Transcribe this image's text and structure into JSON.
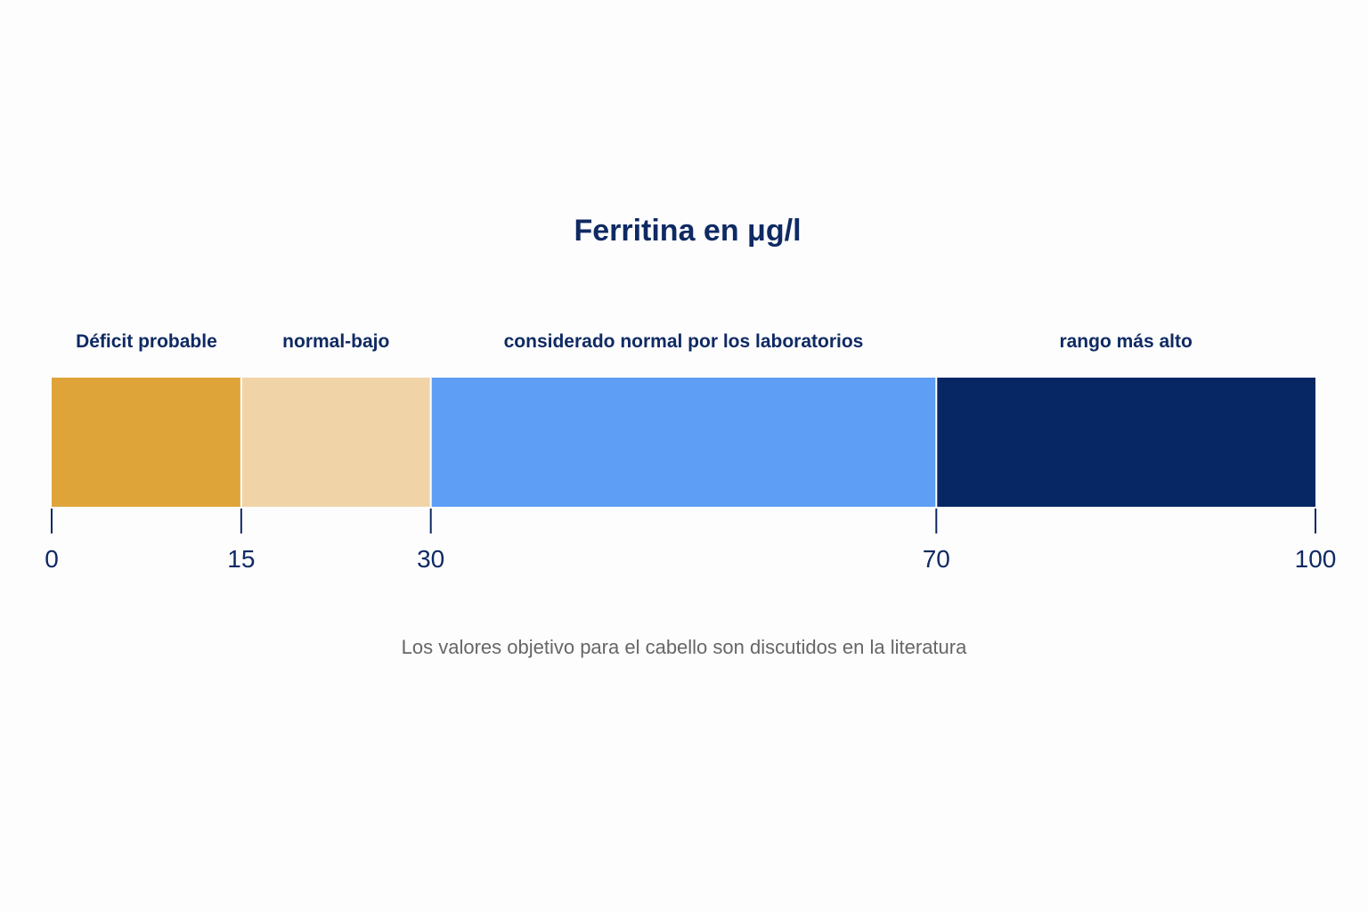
{
  "chart_data": {
    "type": "bar",
    "orientation": "horizontal-segmented",
    "title": "Ferritina en μg/l",
    "xlim": [
      0,
      100
    ],
    "ticks": [
      0,
      15,
      30,
      70,
      100
    ],
    "segments": [
      {
        "label": "Déficit probable",
        "start": 0,
        "end": 15,
        "color": "#dea339"
      },
      {
        "label": "normal-bajo",
        "start": 15,
        "end": 30,
        "color": "#f0d4a8"
      },
      {
        "label": "considerado normal por los laboratorios",
        "start": 30,
        "end": 70,
        "color": "#5e9ef5"
      },
      {
        "label": "rango más alto",
        "start": 70,
        "end": 100,
        "color": "#062764"
      }
    ],
    "note": "Los valores objetivo para el cabello son discutidos en la literatura",
    "grid": false,
    "legend": "none"
  },
  "colors": {
    "text_dark": "#0f2a63",
    "note_text": "#666666",
    "background": "#fdfdfd"
  }
}
